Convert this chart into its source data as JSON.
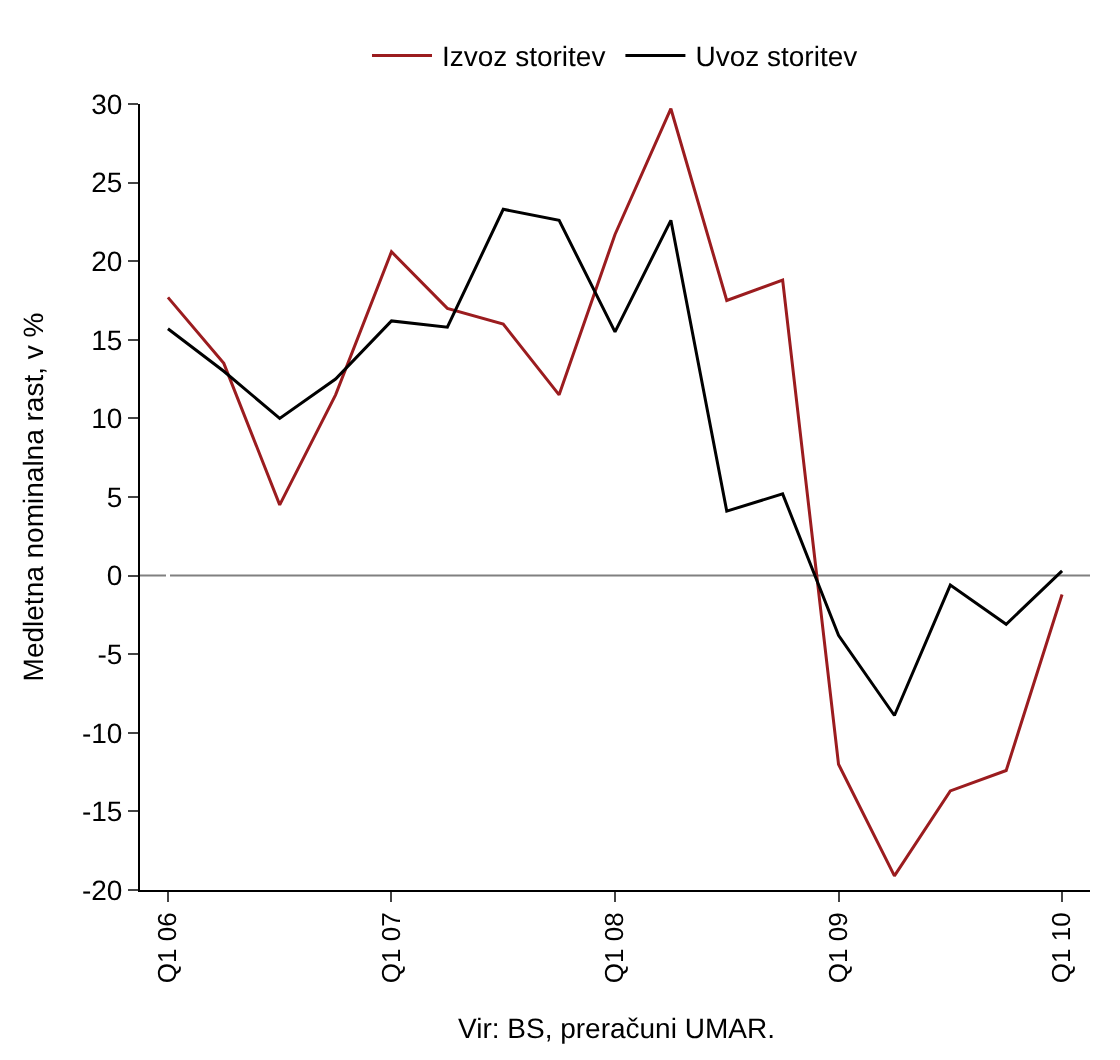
{
  "chart_data": {
    "type": "line",
    "ylabel": "Medletna nominalna rast, v %",
    "annotations": [
      "Vir: BS, preračuni UMAR."
    ],
    "categories": [
      "Q1 06",
      null,
      null,
      null,
      "Q1 07",
      null,
      null,
      null,
      "Q1 08",
      null,
      null,
      null,
      "Q1 09",
      null,
      null,
      null,
      "Q1 10"
    ],
    "series": [
      {
        "name": "Izvoz storitev",
        "color": "#9b1c1f",
        "values": [
          17.7,
          13.5,
          4.5,
          11.5,
          20.6,
          17,
          16,
          11.5,
          21.7,
          29.7,
          17.5,
          18.8,
          -12,
          -19.1,
          -13.7,
          -12.4,
          -1.2
        ]
      },
      {
        "name": "Uvoz storitev",
        "color": "#000000",
        "values": [
          15.7,
          13,
          10,
          12.5,
          16.2,
          15.8,
          23.3,
          22.6,
          15.5,
          22.6,
          4.1,
          5.2,
          -3.8,
          -8.9,
          -0.6,
          -3.1,
          0.3
        ]
      }
    ],
    "ylim": [
      -20,
      30
    ],
    "yticks": [
      -20,
      -15,
      -10,
      -5,
      0,
      5,
      10,
      15,
      20,
      25,
      30
    ],
    "ref_lines": [
      {
        "axis": "y",
        "value": 0,
        "color": "#808080"
      }
    ],
    "grid": false,
    "legend": "top",
    "marker": "none",
    "line_style": "solid"
  }
}
